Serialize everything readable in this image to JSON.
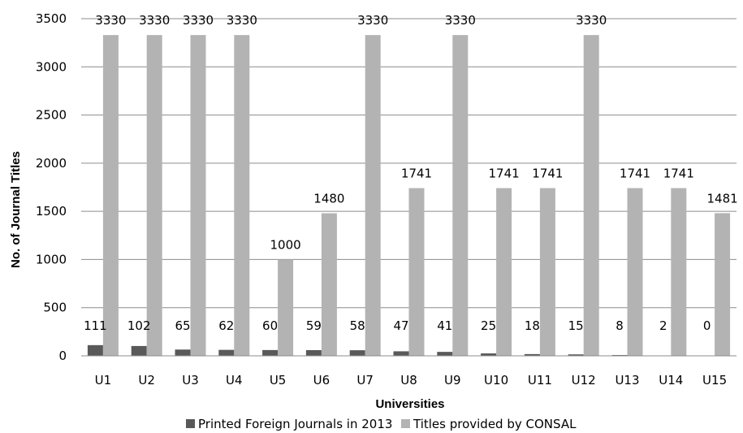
{
  "chart_data": {
    "type": "bar",
    "ylabel": "No. of Journal Titles",
    "xlabel": "Universities",
    "ylim": [
      0,
      3500
    ],
    "yticks": [
      0,
      500,
      1000,
      1500,
      2000,
      2500,
      3000,
      3500
    ],
    "grid": true,
    "legend_position": "bottom",
    "categories": [
      "U1",
      "U2",
      "U3",
      "U4",
      "U5",
      "U6",
      "U7",
      "U8",
      "U9",
      "U10",
      "U11",
      "U12",
      "U13",
      "U14",
      "U15"
    ],
    "series": [
      {
        "name": "Printed Foreign Journals in 2013",
        "color": "#595959",
        "values": [
          111,
          102,
          65,
          62,
          60,
          59,
          58,
          47,
          41,
          25,
          18,
          15,
          8,
          2,
          0
        ]
      },
      {
        "name": "Titles provided by CONSAL",
        "color": "#b3b3b3",
        "values": [
          3330,
          3330,
          3330,
          3330,
          1000,
          1480,
          3330,
          1741,
          3330,
          1741,
          1741,
          3330,
          1741,
          1741,
          1481
        ]
      }
    ]
  }
}
